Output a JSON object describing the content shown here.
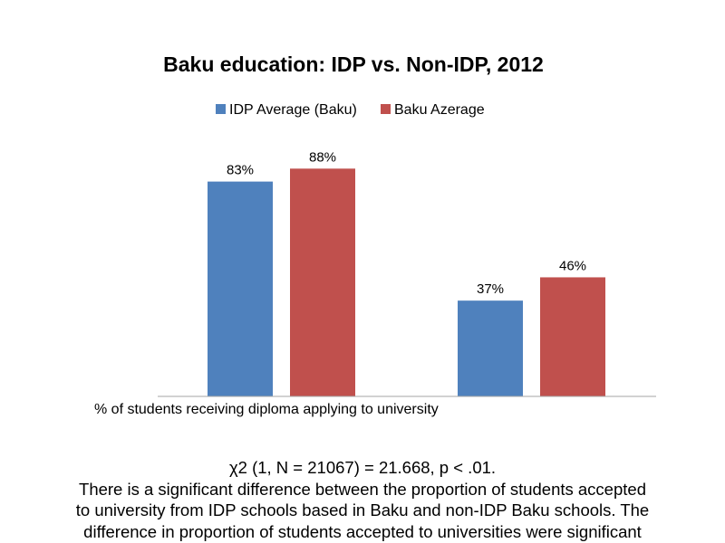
{
  "chart_data": {
    "type": "bar",
    "title": "Baku education: IDP vs. Non-IDP, 2012",
    "categories": [
      "% of students receiving diploma applying to university",
      ""
    ],
    "series": [
      {
        "name": "IDP Average (Baku)",
        "values": [
          83,
          37
        ],
        "labels": [
          "83%",
          "37%"
        ],
        "color": "#4f81bd"
      },
      {
        "name": "Baku Azerage",
        "values": [
          88,
          46
        ],
        "labels": [
          "88%",
          "46%"
        ],
        "color": "#c0504d"
      }
    ],
    "ylim": [
      0,
      100
    ],
    "grid": false,
    "legend": "top"
  },
  "footer": {
    "stat": "χ2 (1, N = 21067) = 21.668, p < .01.",
    "line1": "There is a significant difference between the proportion of students accepted",
    "line2": "to university from IDP schools based in Baku and non-IDP Baku schools. The",
    "line3": "difference in proportion of students accepted to universities were significant"
  }
}
